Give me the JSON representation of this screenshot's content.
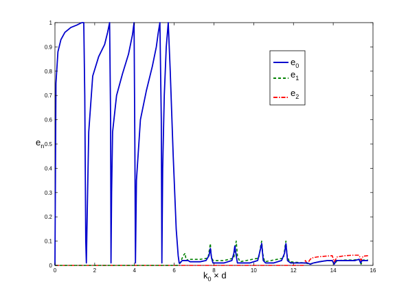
{
  "chart_data": {
    "type": "line",
    "title": "",
    "xlabel": {
      "main": "k",
      "sub": "0",
      "rest": " × d"
    },
    "ylabel": {
      "main": "e",
      "sub": "n"
    },
    "xlim": [
      0,
      16
    ],
    "ylim": [
      0,
      1
    ],
    "xticks": [
      "0",
      "2",
      "4",
      "6",
      "8",
      "10",
      "12",
      "14",
      "16"
    ],
    "yticks": [
      "0",
      "0.1",
      "0.2",
      "0.3",
      "0.4",
      "0.5",
      "0.6",
      "0.7",
      "0.8",
      "0.9",
      "1"
    ],
    "grid": false,
    "legend_position": "upper-right",
    "series": [
      {
        "name": {
          "main": "e",
          "sub": "0"
        },
        "color": "#0000cc",
        "dash": "solid",
        "x": [
          0,
          0.05,
          0.15,
          0.3,
          0.5,
          0.8,
          1.1,
          1.35,
          1.45,
          1.5,
          1.55,
          1.58,
          1.62,
          1.7,
          1.9,
          2.2,
          2.5,
          2.65,
          2.75,
          2.8,
          2.82,
          2.85,
          2.9,
          3.1,
          3.4,
          3.7,
          3.9,
          3.98,
          4.02,
          4.05,
          4.1,
          4.3,
          4.6,
          4.9,
          5.1,
          5.2,
          5.28,
          5.35,
          5.38,
          5.42,
          5.5,
          5.6,
          5.7,
          5.8,
          5.95,
          6.1,
          6.2,
          6.25,
          6.3,
          6.4,
          6.5,
          6.6,
          6.7,
          6.8,
          7.0,
          7.3,
          7.6,
          7.75,
          7.82,
          7.88,
          7.95,
          8.1,
          8.5,
          8.9,
          9.0,
          9.05,
          9.12,
          9.18,
          9.3,
          9.8,
          10.2,
          10.32,
          10.4,
          10.48,
          10.6,
          11.0,
          11.4,
          11.55,
          11.62,
          11.7,
          11.85,
          12.3,
          12.7,
          12.85,
          13.0,
          13.3,
          13.7,
          13.95,
          14.05,
          14.15,
          14.4,
          14.8,
          15.1,
          15.3,
          15.38,
          15.45,
          15.6,
          15.75
        ],
        "y": [
          0,
          0.75,
          0.88,
          0.93,
          0.96,
          0.98,
          0.99,
          1.0,
          1.0,
          0.7,
          0.1,
          0.01,
          0.2,
          0.55,
          0.78,
          0.86,
          0.91,
          0.96,
          1.0,
          0.6,
          0.01,
          0.3,
          0.55,
          0.7,
          0.79,
          0.87,
          0.95,
          1.0,
          0.5,
          0.01,
          0.35,
          0.6,
          0.72,
          0.82,
          0.9,
          0.96,
          1.0,
          0.6,
          0.01,
          0.4,
          0.7,
          0.9,
          1.0,
          0.8,
          0.45,
          0.15,
          0.04,
          0.01,
          0.01,
          0.02,
          0.02,
          0.02,
          0.02,
          0.015,
          0.015,
          0.015,
          0.02,
          0.04,
          0.07,
          0.03,
          0.01,
          0.01,
          0.01,
          0.02,
          0.05,
          0.08,
          0.04,
          0.01,
          0.01,
          0.01,
          0.02,
          0.06,
          0.09,
          0.02,
          0.01,
          0.01,
          0.02,
          0.05,
          0.09,
          0.02,
          0.01,
          0.01,
          0.01,
          0.005,
          0.01,
          0.015,
          0.02,
          0.02,
          0.005,
          0.02,
          0.02,
          0.02,
          0.02,
          0.025,
          0.01,
          0.02,
          0.02,
          0.02
        ]
      },
      {
        "name": {
          "main": "e",
          "sub": "1"
        },
        "color": "#008000",
        "dash": "dashed",
        "x": [
          0,
          6.2,
          6.3,
          6.45,
          6.55,
          6.6,
          6.7,
          6.9,
          7.3,
          7.7,
          7.78,
          7.82,
          7.86,
          7.95,
          8.5,
          9.0,
          9.08,
          9.12,
          9.18,
          9.3,
          10.25,
          10.35,
          10.4,
          10.45,
          10.55,
          11.5,
          11.58,
          11.62,
          11.68,
          11.8,
          12.6,
          12.8,
          13.0,
          13.5,
          13.95,
          14.05,
          14.2,
          14.6,
          15.0,
          15.3,
          15.4,
          15.5,
          15.75
        ],
        "y": [
          0,
          0.0,
          0.01,
          0.04,
          0.05,
          0.02,
          0.025,
          0.025,
          0.025,
          0.03,
          0.07,
          0.09,
          0.04,
          0.02,
          0.02,
          0.03,
          0.08,
          0.1,
          0.04,
          0.015,
          0.03,
          0.08,
          0.1,
          0.05,
          0.015,
          0.03,
          0.08,
          0.1,
          0.04,
          0.015,
          0.01,
          0.005,
          0.01,
          0.018,
          0.02,
          0.005,
          0.02,
          0.022,
          0.022,
          0.025,
          0.005,
          0.022,
          0.022
        ]
      },
      {
        "name": {
          "main": "e",
          "sub": "2"
        },
        "color": "#ff0000",
        "dash": "dashdot",
        "x": [
          0,
          12.5,
          12.6,
          12.7,
          12.8,
          12.9,
          13.2,
          13.6,
          13.95,
          14.05,
          14.2,
          14.6,
          15.0,
          15.3,
          15.4,
          15.5,
          15.75
        ],
        "y": [
          0,
          0.0,
          0.02,
          0.005,
          0.02,
          0.03,
          0.035,
          0.038,
          0.04,
          0.015,
          0.035,
          0.04,
          0.042,
          0.042,
          0.02,
          0.038,
          0.04
        ]
      }
    ]
  }
}
